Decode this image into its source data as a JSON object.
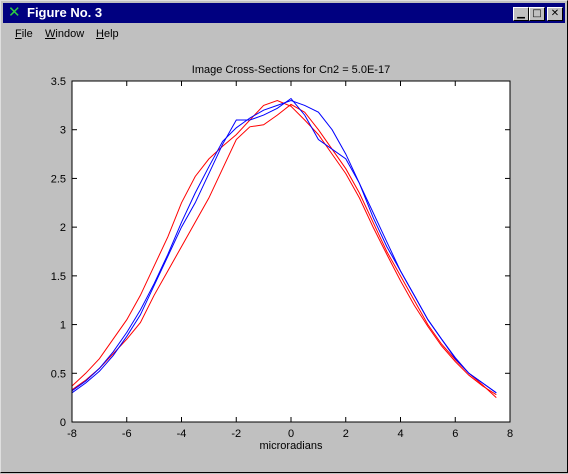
{
  "window": {
    "title": "Figure No. 3",
    "icon": "x-logo-icon",
    "controls": {
      "minimize": "minimize-icon",
      "maximize": "maximize-icon",
      "close": "close-icon"
    }
  },
  "menu": {
    "items": [
      {
        "label": "File"
      },
      {
        "label": "Window"
      },
      {
        "label": "Help"
      }
    ]
  },
  "colors": {
    "titlebar": "#000080",
    "plot_bg": "#ffffff",
    "window_bg": "#c0c0c0",
    "series_red": "#ff0000",
    "series_blue": "#0000ff"
  },
  "chart_data": {
    "type": "line",
    "title": "Image Cross-Sections for Cn2 = 5.0E-17",
    "xlabel": "microradians",
    "ylabel": "",
    "xlim": [
      -8,
      8
    ],
    "ylim": [
      0,
      3.5
    ],
    "xticks": [
      "-8",
      "-6",
      "-4",
      "-2",
      "0",
      "2",
      "4",
      "6",
      "8"
    ],
    "yticks": [
      "0",
      "0.5",
      "1",
      "1.5",
      "2",
      "2.5",
      "3",
      "3.5"
    ],
    "grid": false,
    "series": [
      {
        "color": "#ff0000",
        "x": [
          -8,
          -7.5,
          -7,
          -6.5,
          -6,
          -5.5,
          -5,
          -4.5,
          -4,
          -3.5,
          -3,
          -2.5,
          -2,
          -1.5,
          -1,
          -0.5,
          0,
          0.5,
          1,
          1.5,
          2,
          2.5,
          3,
          3.5,
          4,
          4.5,
          5,
          5.5,
          6,
          6.5,
          7,
          7.5
        ],
        "y": [
          0.37,
          0.5,
          0.65,
          0.85,
          1.05,
          1.3,
          1.6,
          1.9,
          2.25,
          2.52,
          2.7,
          2.83,
          2.95,
          3.1,
          3.25,
          3.3,
          3.24,
          3.1,
          2.95,
          2.75,
          2.55,
          2.3,
          2.0,
          1.72,
          1.45,
          1.2,
          0.98,
          0.78,
          0.62,
          0.48,
          0.37,
          0.28
        ]
      },
      {
        "color": "#ff0000",
        "x": [
          -8,
          -7.5,
          -7,
          -6.5,
          -6,
          -5.5,
          -5,
          -4.5,
          -4,
          -3.5,
          -3,
          -2.5,
          -2,
          -1.5,
          -1,
          -0.5,
          0,
          0.5,
          1,
          1.5,
          2,
          2.5,
          3,
          3.5,
          4,
          4.5,
          5,
          5.5,
          6,
          6.5,
          7,
          7.5
        ],
        "y": [
          0.33,
          0.43,
          0.55,
          0.7,
          0.85,
          1.02,
          1.3,
          1.55,
          1.8,
          2.05,
          2.3,
          2.6,
          2.9,
          3.03,
          3.05,
          3.15,
          3.26,
          3.18,
          3.0,
          2.8,
          2.6,
          2.35,
          2.05,
          1.75,
          1.5,
          1.25,
          1.0,
          0.8,
          0.64,
          0.5,
          0.38,
          0.25
        ]
      },
      {
        "color": "#0000ff",
        "x": [
          -8,
          -7.5,
          -7,
          -6.5,
          -6,
          -5.5,
          -5,
          -4.5,
          -4,
          -3.5,
          -3,
          -2.5,
          -2,
          -1.5,
          -1,
          -0.5,
          0,
          0.5,
          1,
          1.5,
          2,
          2.5,
          3,
          3.5,
          4,
          4.5,
          5,
          5.5,
          6,
          6.5,
          7,
          7.5
        ],
        "y": [
          0.3,
          0.4,
          0.52,
          0.68,
          0.88,
          1.1,
          1.4,
          1.7,
          2.0,
          2.25,
          2.55,
          2.85,
          3.1,
          3.1,
          3.15,
          3.22,
          3.32,
          3.15,
          2.9,
          2.8,
          2.7,
          2.45,
          2.15,
          1.85,
          1.55,
          1.3,
          1.05,
          0.85,
          0.65,
          0.5,
          0.4,
          0.3
        ]
      },
      {
        "color": "#0000ff",
        "x": [
          -8,
          -7.5,
          -7,
          -6.5,
          -6,
          -5.5,
          -5,
          -4.5,
          -4,
          -3.5,
          -3,
          -2.5,
          -2,
          -1.5,
          -1,
          -0.5,
          0,
          0.5,
          1,
          1.5,
          2,
          2.5,
          3,
          3.5,
          4,
          4.5,
          5,
          5.5,
          6,
          6.5,
          7,
          7.5
        ],
        "y": [
          0.32,
          0.42,
          0.55,
          0.72,
          0.92,
          1.15,
          1.42,
          1.72,
          2.05,
          2.35,
          2.62,
          2.88,
          3.02,
          3.12,
          3.2,
          3.25,
          3.3,
          3.25,
          3.18,
          3.0,
          2.75,
          2.45,
          2.1,
          1.8,
          1.55,
          1.3,
          1.05,
          0.85,
          0.66,
          0.5,
          0.4,
          0.3
        ]
      }
    ]
  }
}
